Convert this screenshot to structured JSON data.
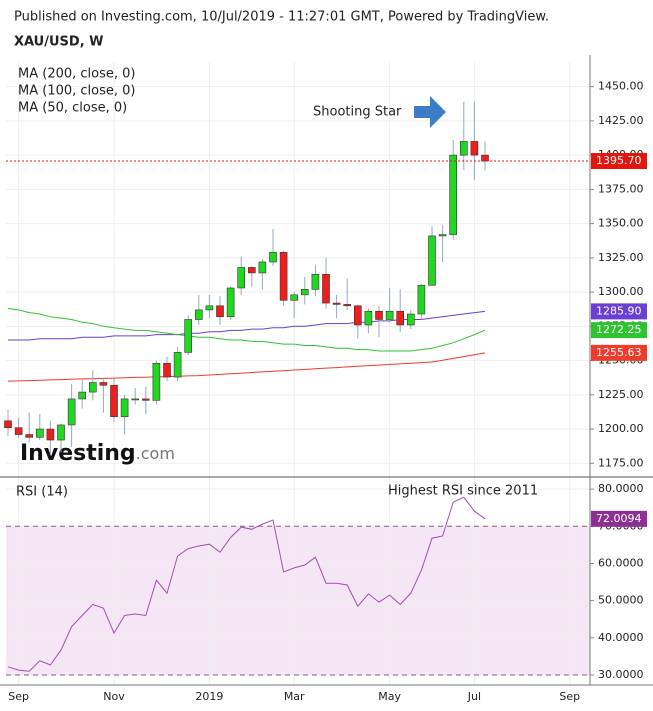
{
  "header": {
    "published": "Published on Investing.com, 10/Jul/2019 - 11:27:01 GMT, Powered by TradingView.",
    "symbol": "XAU/USD, W"
  },
  "logo": {
    "brand": "Investing",
    "suffix": ".com"
  },
  "chart_data": {
    "type": "candlestick",
    "categories": [
      null,
      "Sep",
      null,
      null,
      null,
      null,
      null,
      null,
      null,
      null,
      "Nov",
      null,
      null,
      null,
      null,
      null,
      null,
      null,
      null,
      "2019",
      null,
      null,
      null,
      null,
      null,
      null,
      null,
      "Mar",
      null,
      null,
      null,
      null,
      null,
      null,
      null,
      null,
      "May",
      null,
      null,
      null,
      null,
      null,
      null,
      null,
      "Jul",
      null,
      null,
      null,
      null,
      null,
      null,
      null,
      null,
      "Sep",
      null
    ],
    "open": [
      1206,
      1201,
      1196,
      1194,
      1200,
      1192,
      1203,
      1222,
      1227,
      1234,
      1232,
      1209,
      1222,
      1222,
      1221,
      1248,
      1238,
      1256,
      1280,
      1287,
      1290,
      1282,
      1303,
      1318,
      1314,
      1322,
      1329,
      1294,
      1298,
      1302,
      1313,
      1292,
      1291,
      1290,
      1276,
      1286,
      1280,
      1286,
      1276,
      1284,
      1305,
      1341,
      1342,
      1400,
      1410,
      1400,
      null,
      null,
      null,
      null,
      null,
      null,
      null,
      null,
      null
    ],
    "high": [
      1214,
      1208,
      1212,
      1211,
      1206,
      1204,
      1233,
      1236,
      1243,
      1237,
      1237,
      1225,
      1230,
      1231,
      1250,
      1253,
      1260,
      1283,
      1298,
      1298,
      1297,
      1304,
      1326,
      1319,
      1324,
      1346,
      1330,
      1300,
      1311,
      1320,
      1325,
      1298,
      1310,
      1291,
      1288,
      1290,
      1303,
      1302,
      1287,
      1306,
      1348,
      1349,
      1411,
      1439,
      1439,
      1410,
      null,
      null,
      null,
      null,
      null,
      null,
      null,
      null,
      null
    ],
    "low": [
      1195,
      1194,
      1190,
      1192,
      1181,
      1183,
      1187,
      1215,
      1221,
      1212,
      1205,
      1196,
      1218,
      1211,
      1218,
      1235,
      1235,
      1254,
      1276,
      1281,
      1276,
      1280,
      1298,
      1304,
      1302,
      1319,
      1290,
      1281,
      1291,
      1297,
      1288,
      1281,
      1287,
      1266,
      1270,
      1267,
      1278,
      1271,
      1273,
      1280,
      1305,
      1322,
      1338,
      1389,
      1382,
      1389,
      null,
      null,
      null,
      null,
      null,
      null,
      null,
      null,
      null
    ],
    "close": [
      1201,
      1196,
      1194,
      1200,
      1192,
      1203,
      1222,
      1227,
      1234,
      1232,
      1209,
      1222,
      1222,
      1221,
      1248,
      1238,
      1256,
      1280,
      1287,
      1290,
      1282,
      1303,
      1318,
      1314,
      1322,
      1329,
      1294,
      1298,
      1302,
      1313,
      1292,
      1291,
      1290,
      1276,
      1286,
      1280,
      1286,
      1276,
      1284,
      1305,
      1341,
      1342,
      1400,
      1410,
      1400,
      1395.7,
      null,
      null,
      null,
      null,
      null,
      null,
      null,
      null,
      null
    ],
    "up_color": "#22d622",
    "down_color": "#f01d1d",
    "wick_color": "#93a9c2",
    "ylim": [
      1165,
      1468
    ],
    "yticks": [
      {
        "value": 1175,
        "label": "1175.00"
      },
      {
        "value": 1200,
        "label": "1200.00"
      },
      {
        "value": 1225,
        "label": "1225.00"
      },
      {
        "value": 1250,
        "label": "1250.00"
      },
      {
        "value": 1275,
        "label": "1275.00"
      },
      {
        "value": 1300,
        "label": "1300.00"
      },
      {
        "value": 1325,
        "label": "1325.00"
      },
      {
        "value": 1350,
        "label": "1350.00"
      },
      {
        "value": 1375,
        "label": "1375.00"
      },
      {
        "value": 1400,
        "label": "1400.00"
      },
      {
        "value": 1425,
        "label": "1425.00"
      },
      {
        "value": 1450,
        "label": "1450.00"
      }
    ],
    "grid": true,
    "last_price": {
      "value": 1395.7,
      "label": "1395.70",
      "color": "#e3160e"
    },
    "annotation": "Shooting Star",
    "series": [
      {
        "name": "MA (200, close, 0)",
        "color": "#ef3b2c",
        "last_label": "1255.63",
        "values": [
          1235.0,
          1235.2,
          1235.4,
          1235.7,
          1235.9,
          1236.1,
          1236.3,
          1236.6,
          1236.8,
          1237.0,
          1237.2,
          1237.4,
          1237.7,
          1237.9,
          1238.1,
          1238.3,
          1238.6,
          1238.8,
          1239.0,
          1239.5,
          1239.9,
          1240.4,
          1240.8,
          1241.3,
          1241.7,
          1242.2,
          1242.6,
          1243.1,
          1243.5,
          1244.0,
          1244.5,
          1244.9,
          1245.4,
          1245.8,
          1246.3,
          1246.7,
          1247.2,
          1247.6,
          1248.1,
          1248.5,
          1249.0,
          1250.3,
          1251.6,
          1252.9,
          1254.3,
          1255.63,
          null,
          null,
          null,
          null,
          null,
          null,
          null,
          null,
          null
        ]
      },
      {
        "name": "MA (100, close, 0)",
        "color": "#6a3fd2",
        "last_label": "1285.90",
        "values": [
          1265,
          1265,
          1265,
          1266,
          1266,
          1266,
          1266,
          1267,
          1267,
          1267,
          1268,
          1268,
          1268,
          1268,
          1269,
          1269,
          1269,
          1270,
          1270,
          1271,
          1271,
          1272,
          1272,
          1273,
          1273,
          1274,
          1274,
          1275,
          1275,
          1276,
          1277,
          1277,
          1277,
          1278,
          1278,
          1279,
          1279,
          1280,
          1280,
          1280,
          1281,
          1282,
          1283,
          1284,
          1285,
          1285.9,
          null,
          null,
          null,
          null,
          null,
          null,
          null,
          null,
          null
        ]
      },
      {
        "name": "MA (50, close, 0)",
        "color": "#2fc42f",
        "last_label": "1272.25",
        "values": [
          1288,
          1287,
          1285,
          1284,
          1282,
          1281,
          1280,
          1278,
          1277,
          1275,
          1274,
          1273,
          1272,
          1272,
          1271,
          1270,
          1269,
          1268,
          1267,
          1267,
          1266,
          1265,
          1265,
          1264,
          1264,
          1263,
          1262,
          1262,
          1261,
          1261,
          1260,
          1259,
          1259,
          1258,
          1258,
          1257,
          1257,
          1257,
          1257,
          1258,
          1259,
          1261,
          1263,
          1266,
          1269,
          1272.25,
          null,
          null,
          null,
          null,
          null,
          null,
          null,
          null,
          null
        ]
      }
    ],
    "rsi": {
      "name": "RSI (14)",
      "color": "#a24fae",
      "tag_color": "#8e2f93",
      "last_label": "72.0094",
      "annotation": "Highest RSI since 2011",
      "band": [
        30,
        70
      ],
      "band_color": "#f4e6f4",
      "ylim": [
        27.3,
        83
      ],
      "yticks": [
        {
          "value": 30,
          "label": "30.0000"
        },
        {
          "value": 40,
          "label": "40.0000"
        },
        {
          "value": 50,
          "label": "50.0000"
        },
        {
          "value": 60,
          "label": "60.0000"
        },
        {
          "value": 70,
          "label": "70.0000"
        },
        {
          "value": 80,
          "label": "80.0000"
        }
      ],
      "values": [
        32.2,
        31.3,
        31,
        33.8,
        32.7,
        36.7,
        43,
        46,
        49,
        48,
        41.3,
        46,
        46.4,
        46,
        55.5,
        52,
        62,
        64,
        64.7,
        65.2,
        63,
        67,
        69.8,
        69.2,
        70.6,
        71.7,
        57.7,
        58.8,
        59.6,
        61.7,
        54.7,
        54.7,
        54.2,
        48.5,
        51.8,
        49.6,
        51.5,
        49,
        52,
        58.2,
        66.8,
        67.4,
        76.5,
        77.8,
        74.1,
        72.0094,
        null,
        null,
        null,
        null,
        null,
        null,
        null,
        null,
        null
      ]
    }
  }
}
